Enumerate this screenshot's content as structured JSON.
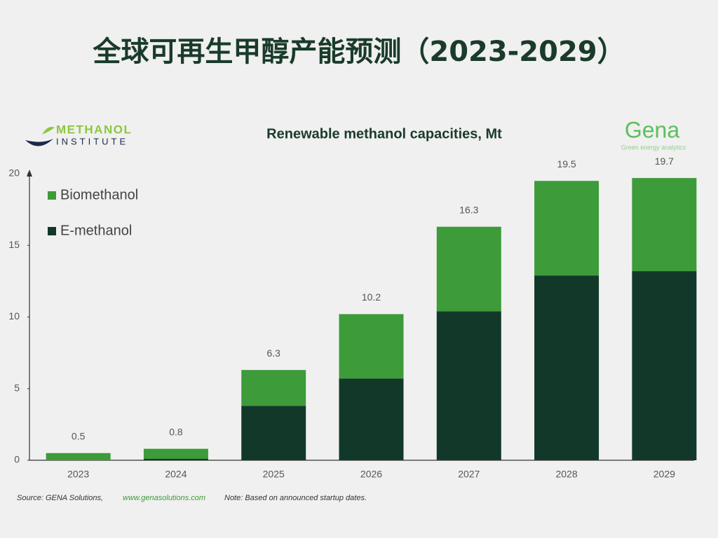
{
  "page_title": "全球可再生甲醇产能预测（2023-2029）",
  "logos": {
    "left": [
      "METHANOL",
      "INSTITUTE"
    ],
    "right": "Gena",
    "right_tagline": "Green energy analytics"
  },
  "source": {
    "label": "Source: GENA Solutions,",
    "url": "www.genasolutions.com",
    "note": "Note: Based on announced startup dates."
  },
  "chart_data": {
    "type": "stacked_bar",
    "title": "Renewable methanol capacities, Mt",
    "categories": [
      "2023",
      "2024",
      "2025",
      "2026",
      "2027",
      "2028",
      "2029"
    ],
    "series": [
      {
        "name": "Biomethanol",
        "color": "#3d9b3a",
        "values": [
          0.5,
          0.7,
          2.5,
          4.5,
          5.9,
          6.6,
          6.5
        ]
      },
      {
        "name": "E-methanol",
        "color": "#12382a",
        "values": [
          0,
          0.1,
          3.8,
          5.7,
          10.4,
          12.9,
          13.2
        ]
      }
    ],
    "totals": [
      0.5,
      0.8,
      6.3,
      10.2,
      16.3,
      19.5,
      19.7
    ],
    "ylim": [
      0,
      20
    ],
    "yticks": [
      0,
      5,
      10,
      15,
      20
    ],
    "grid": false,
    "legend": "top-left"
  }
}
